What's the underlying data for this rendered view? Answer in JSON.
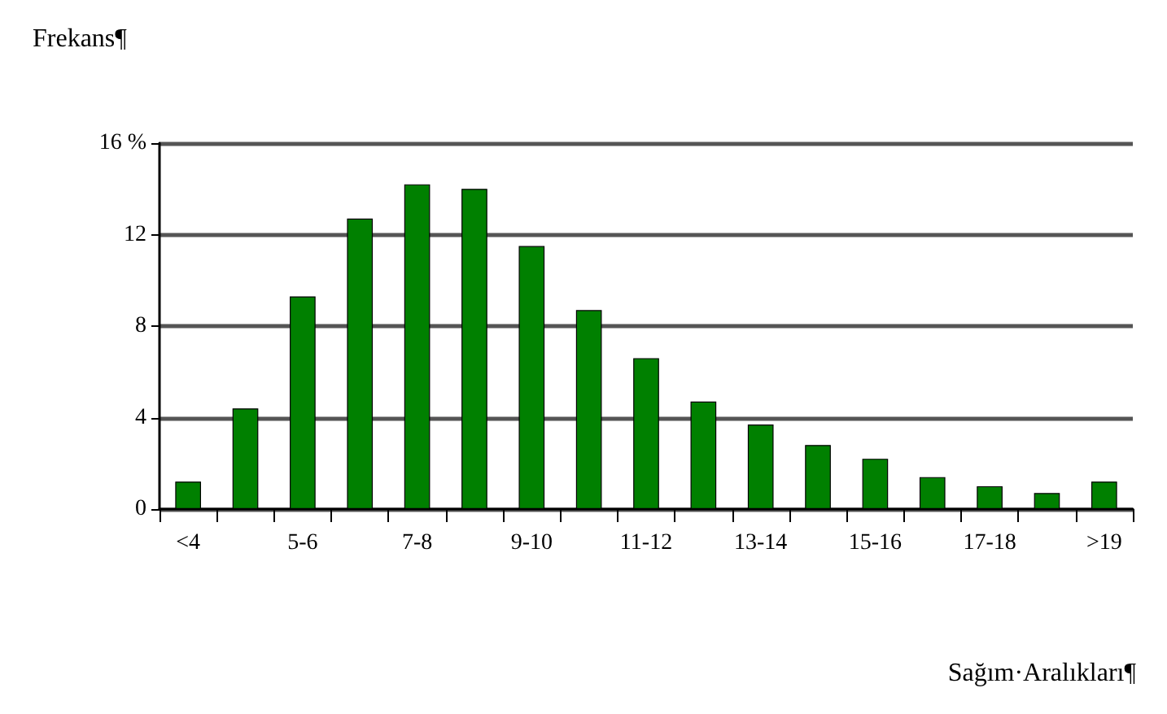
{
  "chart_data": {
    "type": "bar",
    "ylabel": "Frekans¶",
    "xlabel": "Sağım·Aralıkları¶",
    "categories": [
      "<4",
      null,
      "5-6",
      null,
      "7-8",
      null,
      "9-10",
      null,
      "11-12",
      null,
      "13-14",
      null,
      "15-16",
      null,
      "17-18",
      null,
      ">19"
    ],
    "values": [
      1.2,
      4.4,
      9.3,
      12.7,
      14.2,
      14.0,
      11.5,
      8.7,
      6.6,
      4.7,
      3.7,
      2.8,
      2.2,
      1.4,
      1.0,
      0.7,
      1.2
    ],
    "color": "#008000",
    "ylim": [
      0,
      16
    ],
    "yticks": [
      0,
      4,
      8,
      12,
      {
        "value": 16,
        "label": "16 %"
      }
    ],
    "grid": "y"
  }
}
